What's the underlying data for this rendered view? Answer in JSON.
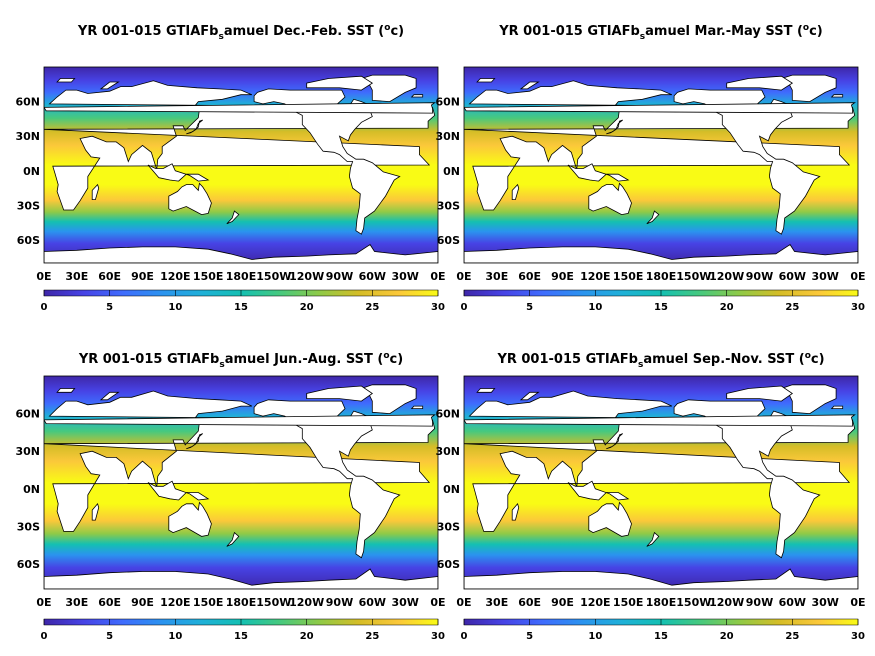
{
  "figure": {
    "colormap": [
      "#3e26a8",
      "#4743e5",
      "#3f6cfd",
      "#2b93ef",
      "#1fb0d8",
      "#14c0b2",
      "#47c97e",
      "#8fca47",
      "#d5bd27",
      "#fbc83a",
      "#f9fb15"
    ],
    "land_color": "#ffffff",
    "panels": [
      {
        "title_pre": "YR 001-015 GTIAFb",
        "title_sub": "s",
        "title_mid": "amuel Dec.-Feb. SST (",
        "title_sup": "o",
        "title_post": "c)"
      },
      {
        "title_pre": "YR 001-015 GTIAFb",
        "title_sub": "s",
        "title_mid": "amuel Mar.-May SST (",
        "title_sup": "o",
        "title_post": "c)"
      },
      {
        "title_pre": "YR 001-015 GTIAFb",
        "title_sub": "s",
        "title_mid": "amuel Jun.-Aug. SST (",
        "title_sup": "o",
        "title_post": "c)"
      },
      {
        "title_pre": "YR 001-015 GTIAFb",
        "title_sub": "s",
        "title_mid": "amuel Sep.-Nov. SST (",
        "title_sup": "o",
        "title_post": "c)"
      }
    ],
    "lat_ticks": [
      {
        "label": "60N",
        "lat": 60
      },
      {
        "label": "30N",
        "lat": 30
      },
      {
        "label": "0N",
        "lat": 0
      },
      {
        "label": "30S",
        "lat": -30
      },
      {
        "label": "60S",
        "lat": -60
      }
    ],
    "lon_ticks": [
      "0E",
      "30E",
      "60E",
      "90E",
      "120E",
      "150E",
      "180E",
      "150W",
      "120W",
      "90W",
      "60W",
      "30W",
      "0E"
    ],
    "colorbar_ticks": [
      "0",
      "5",
      "10",
      "15",
      "20",
      "25",
      "30"
    ]
  },
  "chart_data": {
    "type": "heatmap",
    "variable": "SST",
    "units": "oc",
    "color_range": [
      0,
      30
    ],
    "lon_range_deg_east": [
      0,
      360
    ],
    "lat_range": [
      -80,
      90
    ],
    "seasons": [
      "Dec.-Feb.",
      "Mar.-May",
      "Jun.-Aug.",
      "Sep.-Nov."
    ]
  }
}
